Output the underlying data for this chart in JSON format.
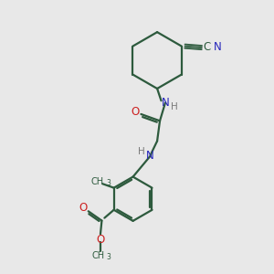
{
  "bg_color": "#e8e8e8",
  "bond_color": "#2d5a3d",
  "bond_width": 1.6,
  "atom_colors": {
    "N": "#2626bb",
    "O": "#cc2020",
    "C": "#2d5a3d",
    "H": "#7a7a7a"
  },
  "font_size_atom": 8.5,
  "font_size_sub": 7.0,
  "font_size_h": 7.5
}
